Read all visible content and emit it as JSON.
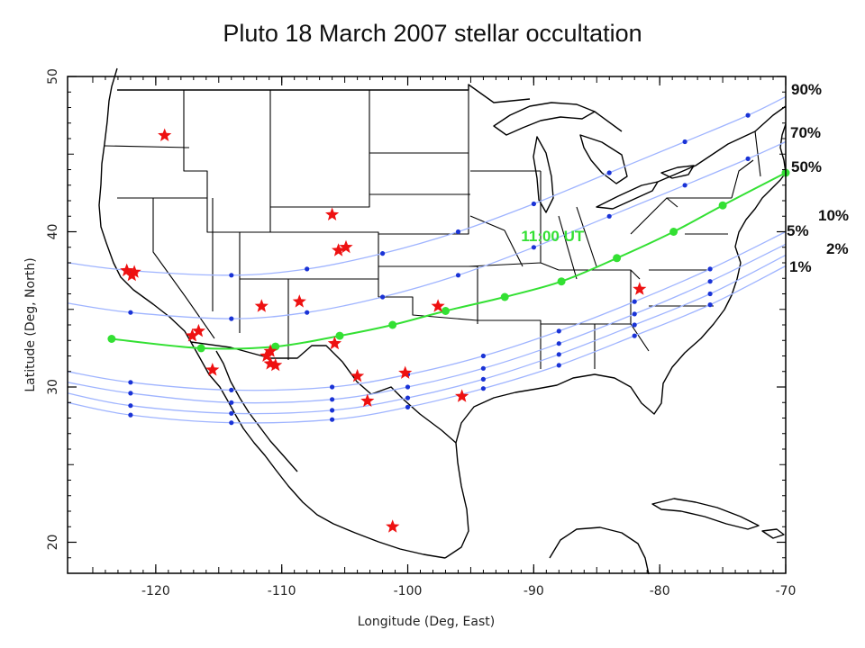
{
  "title": "Pluto 18 March 2007 stellar occultation",
  "colors": {
    "probability_line": "#9fb4ff",
    "probability_dot": "#1a33d6",
    "center_line": "#33e033",
    "station_star": "#ee1111",
    "coast": "#000000",
    "border": "#000000"
  },
  "chart_data": {
    "type": "map",
    "xlabel": "Longitude (Deg, East)",
    "ylabel": "Latitude (Deg, North)",
    "xlim": [
      -127,
      -70
    ],
    "ylim": [
      18,
      50
    ],
    "xticks": [
      -120,
      -110,
      -100,
      -90,
      -80,
      -70
    ],
    "yticks": [
      20,
      30,
      40,
      50
    ],
    "center_time_label": "11:00 UT",
    "center_time_label_position": {
      "lon": -88.5,
      "lat": 39.4
    },
    "center_line": {
      "name": "50%",
      "points": [
        [
          -123.5,
          33.1
        ],
        [
          -116.4,
          32.5
        ],
        [
          -110.5,
          32.6
        ],
        [
          -105.4,
          33.3
        ],
        [
          -101.2,
          34.0
        ],
        [
          -97.0,
          34.9
        ],
        [
          -92.3,
          35.8
        ],
        [
          -87.8,
          36.8
        ],
        [
          -83.4,
          38.3
        ],
        [
          -78.9,
          40.0
        ],
        [
          -75.0,
          41.7
        ],
        [
          -70.0,
          43.8
        ]
      ]
    },
    "probability_lines": [
      {
        "name": "90%",
        "points": [
          [
            -127,
            38.0
          ],
          [
            -122.0,
            37.5
          ],
          [
            -114.0,
            37.2
          ],
          [
            -108.0,
            37.6
          ],
          [
            -102.0,
            38.6
          ],
          [
            -96.0,
            40.0
          ],
          [
            -90.0,
            41.8
          ],
          [
            -84.0,
            43.8
          ],
          [
            -78.0,
            45.8
          ],
          [
            -73.0,
            47.5
          ],
          [
            -70.0,
            48.7
          ]
        ]
      },
      {
        "name": "70%",
        "points": [
          [
            -127,
            35.4
          ],
          [
            -122.0,
            34.8
          ],
          [
            -114.0,
            34.4
          ],
          [
            -108.0,
            34.8
          ],
          [
            -102.0,
            35.8
          ],
          [
            -96.0,
            37.2
          ],
          [
            -90.0,
            39.0
          ],
          [
            -84.0,
            41.0
          ],
          [
            -78.0,
            43.0
          ],
          [
            -73.0,
            44.7
          ],
          [
            -70.0,
            45.8
          ]
        ]
      },
      {
        "name": "10%",
        "points": [
          [
            -127,
            31.0
          ],
          [
            -122.0,
            30.3
          ],
          [
            -114.0,
            29.8
          ],
          [
            -106.0,
            30.0
          ],
          [
            -100.0,
            30.8
          ],
          [
            -94.0,
            32.0
          ],
          [
            -88.0,
            33.6
          ],
          [
            -82.0,
            35.5
          ],
          [
            -76.0,
            37.6
          ],
          [
            -70.0,
            40.0
          ]
        ]
      },
      {
        "name": "5%",
        "points": [
          [
            -127,
            30.3
          ],
          [
            -122.0,
            29.6
          ],
          [
            -114.0,
            29.0
          ],
          [
            -106.0,
            29.2
          ],
          [
            -100.0,
            30.0
          ],
          [
            -94.0,
            31.2
          ],
          [
            -88.0,
            32.8
          ],
          [
            -82.0,
            34.7
          ],
          [
            -76.0,
            36.8
          ],
          [
            -70.0,
            39.2
          ]
        ]
      },
      {
        "name": "2%",
        "points": [
          [
            -127,
            29.6
          ],
          [
            -122.0,
            28.8
          ],
          [
            -114.0,
            28.3
          ],
          [
            -106.0,
            28.5
          ],
          [
            -100.0,
            29.3
          ],
          [
            -94.0,
            30.5
          ],
          [
            -88.0,
            32.1
          ],
          [
            -82.0,
            34.0
          ],
          [
            -76.0,
            36.0
          ],
          [
            -70.0,
            38.5
          ]
        ]
      },
      {
        "name": "1%",
        "points": [
          [
            -127,
            29.0
          ],
          [
            -122.0,
            28.2
          ],
          [
            -114.0,
            27.7
          ],
          [
            -106.0,
            27.9
          ],
          [
            -100.0,
            28.7
          ],
          [
            -94.0,
            29.9
          ],
          [
            -88.0,
            31.4
          ],
          [
            -82.0,
            33.3
          ],
          [
            -76.0,
            35.3
          ],
          [
            -70.0,
            37.8
          ]
        ]
      }
    ],
    "series_labels": [
      "90%",
      "70%",
      "50%",
      "10%",
      "5%",
      "2%",
      "1%"
    ],
    "stations": [
      [
        -119.3,
        46.2
      ],
      [
        -122.3,
        37.5
      ],
      [
        -121.9,
        37.2
      ],
      [
        -121.7,
        37.4
      ],
      [
        -117.1,
        33.3
      ],
      [
        -116.6,
        33.6
      ],
      [
        -115.5,
        31.1
      ],
      [
        -111.6,
        35.2
      ],
      [
        -111.2,
        32.0
      ],
      [
        -110.9,
        32.3
      ],
      [
        -110.9,
        31.5
      ],
      [
        -110.5,
        31.4
      ],
      [
        -108.6,
        35.5
      ],
      [
        -106.0,
        41.1
      ],
      [
        -105.5,
        38.8
      ],
      [
        -104.9,
        39.0
      ],
      [
        -105.8,
        32.8
      ],
      [
        -104.0,
        30.7
      ],
      [
        -103.2,
        29.1
      ],
      [
        -100.2,
        30.9
      ],
      [
        -97.6,
        35.2
      ],
      [
        -95.7,
        29.4
      ],
      [
        -81.6,
        36.3
      ],
      [
        -101.2,
        21.0
      ]
    ]
  }
}
